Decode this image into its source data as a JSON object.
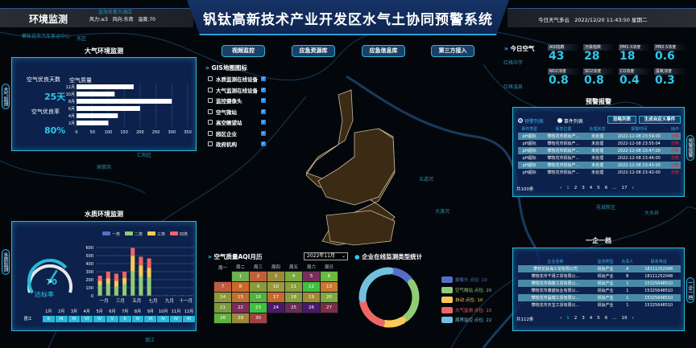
{
  "header": {
    "section": "环境监测",
    "weather_info": "风力:≤3   风向:东南   温度:70",
    "title": "钒钛高新技术产业开发区水气土协同预警系统",
    "datetime": "今日天气多云   2022/12/20 11:43:50 星期二"
  },
  "nav": [
    "视频监控",
    "应急资源库",
    "应急信息库",
    "第三方接入"
  ],
  "gis": {
    "title": "GIS地图图标",
    "items": [
      "水质监测在线设备",
      "大气监测在线设备",
      "监控摄像头",
      "空气微站",
      "高空瞭望站",
      "园区企业",
      "政府机构"
    ]
  },
  "map_labels": [
    "攀枝花市汽车客运中心",
    "东区",
    "金海名都大酒店",
    "红格中学",
    "红格温泉",
    "仁和区",
    "大渡河",
    "炳草岗",
    "五道河",
    "花城新区",
    "银江",
    "大水井"
  ],
  "air": {
    "title": "大气环境监测",
    "tab": "大气监测",
    "good_days_label": "空气优良天数",
    "good_days": "25天",
    "good_rate_label": "空气优良率",
    "good_rate": "80%",
    "chart_title": "空气质量"
  },
  "chart_data": [
    {
      "type": "bar",
      "orientation": "horizontal",
      "title": "空气质量",
      "categories": [
        "12月",
        "10月",
        "8月",
        "6月",
        "4月",
        "2月"
      ],
      "values": [
        180,
        120,
        300,
        200,
        130,
        100
      ],
      "xlim": [
        0,
        350
      ],
      "xticks": [
        0,
        50,
        100,
        150,
        200,
        250,
        300,
        350
      ],
      "grid": true,
      "color": "#ffffff"
    },
    {
      "type": "bar",
      "stacked": true,
      "categories": [
        "一月",
        "二月",
        "三月",
        "四月",
        "五月",
        "六月",
        "七月",
        "八月",
        "九月",
        "十月",
        "十一月",
        "十二月"
      ],
      "xtick_labels": [
        "一月",
        "三月",
        "五月",
        "七月",
        "九月",
        "十一月"
      ],
      "ylim": [
        0,
        600
      ],
      "yticks": [
        0,
        100,
        200,
        300,
        400,
        500,
        600
      ],
      "legend": "top",
      "series": [
        {
          "name": "一类",
          "color": "#5470c6",
          "values": [
            5,
            5,
            5,
            5,
            5,
            5,
            5,
            3,
            4,
            5,
            5,
            5
          ]
        },
        {
          "name": "二类",
          "color": "#91cc75",
          "values": [
            130,
            145,
            110,
            145,
            300,
            240,
            230,
            0,
            0,
            0,
            0,
            0
          ]
        },
        {
          "name": "三类",
          "color": "#fac858",
          "values": [
            50,
            65,
            70,
            70,
            190,
            130,
            110,
            0,
            0,
            0,
            0,
            0
          ]
        },
        {
          "name": "四类",
          "color": "#ee6666",
          "values": [
            65,
            85,
            90,
            80,
            100,
            110,
            120,
            0,
            0,
            0,
            0,
            0
          ]
        }
      ]
    },
    {
      "type": "pie",
      "donut": true,
      "title": "企业在线监测类型统计",
      "series": [
        {
          "name": "摄像头",
          "label": "摄像头 点位: 10",
          "value": 10,
          "color": "#5470c6"
        },
        {
          "name": "空气微站",
          "label": "空气微站 点位: 20",
          "value": 20,
          "color": "#91cc75"
        },
        {
          "name": "自动",
          "label": "自动 点位: 10",
          "value": 10,
          "color": "#fac858"
        },
        {
          "name": "大气监测",
          "label": "大气监测 点位: 15",
          "value": 15,
          "color": "#ee6666"
        },
        {
          "name": "周界监控",
          "label": "周界监控 点位: 22",
          "value": 22,
          "color": "#73c0de"
        }
      ]
    }
  ],
  "water": {
    "title": "水质环境监测",
    "tab": "水质监测",
    "gauge_value": "70",
    "gauge_pct": 70,
    "gauge_label": "达标率",
    "river": "晋江",
    "months": [
      "1月",
      "2月",
      "3月",
      "4月",
      "5月",
      "6月",
      "7月",
      "8月",
      "9月",
      "10月",
      "11月",
      "12月"
    ],
    "grades": [
      "II",
      "III",
      "III",
      "VI",
      "IV",
      "V",
      "II",
      "IV",
      "VI",
      "IV",
      "IV",
      "VI"
    ]
  },
  "calendar": {
    "title": "空气质量AQI月历",
    "month_select": "2022年11月",
    "weekdays": [
      "周一",
      "周二",
      "周三",
      "周四",
      "周五",
      "周六",
      "周日"
    ],
    "start_offset": 1,
    "colors": [
      "#6ab04c",
      "#c0603a",
      "#9a8a3a",
      "#7aa840",
      "#7a2e5a",
      "#6ab840",
      "#c05a40",
      "#c86a30",
      "#8a9a3a",
      "#9a9a40",
      "#8aa040",
      "#40c040",
      "#c87a30",
      "#8a9a3a",
      "#c07030",
      "#50b040",
      "#c86a30",
      "#8aa040",
      "#a08a3a",
      "#80a840",
      "#7a9a40",
      "#7a2e5a",
      "#40c040",
      "#4a1a6a",
      "#6a2a5a",
      "#4a1a6a",
      "#7a2e4a",
      "#60b040",
      "#9a8a3a",
      "#a04040"
    ]
  },
  "today_air": {
    "title": "今日空气",
    "metrics": [
      {
        "label": "AQI指数",
        "value": "43"
      },
      {
        "label": "污染指数",
        "value": "28"
      },
      {
        "label": "PM1.5浓度",
        "value": "18"
      },
      {
        "label": "PM2.5浓度",
        "value": "0.6"
      },
      {
        "label": "NO2浓度",
        "value": "0.8"
      },
      {
        "label": "SO2浓度",
        "value": "0.8"
      },
      {
        "label": "CO浓度",
        "value": "0.4"
      },
      {
        "label": "臭氧浓度",
        "value": "0.3"
      }
    ]
  },
  "alarm": {
    "title": "预警报警",
    "tab": "预警报警",
    "radio1": "预警列表",
    "radio2": "事件列表",
    "btn_ignore": "忽略列表",
    "btn_create": "生成自定义事件",
    "columns": [
      "事件类型",
      "事发位置",
      "处理状态",
      "报警时间",
      "操作"
    ],
    "rows": [
      [
        "pH超标",
        "攀枝花市钒钛产...",
        "未处理",
        "2022-12-08 23:59:00",
        "忽略"
      ],
      [
        "pH超标",
        "攀枝花市钒钛产...",
        "未处理",
        "2022-12-08 23:55:04",
        "忽略"
      ],
      [
        "pH超标",
        "攀枝花市钒钛产...",
        "未处理",
        "2022-12-08 23:47:00",
        "忽略"
      ],
      [
        "pH超标",
        "攀枝花市钒钛产...",
        "未处理",
        "2022-12-08 23:46:00",
        "忽略"
      ],
      [
        "pH超标",
        "攀枝花市钒钛产...",
        "未处理",
        "2022-12-08 23:43:00",
        "忽略"
      ],
      [
        "pH超标",
        "攀枝花市钒钛产...",
        "未处理",
        "2022-12-08 23:42:00",
        "忽略"
      ]
    ],
    "total": "共100条",
    "pages": [
      "‹",
      "1",
      "2",
      "3",
      "4",
      "5",
      "6",
      "...",
      "17",
      "›"
    ]
  },
  "enterprise": {
    "title": "一企一档",
    "tab": "一企一档",
    "columns": [
      "企业名称",
      "监测类型",
      "负责人",
      "联系电话"
    ],
    "rows": [
      [
        "攀枝花钛海工贸有限公司",
        "钒钛产业",
        "A",
        "18111252048"
      ],
      [
        "攀枝花市千禧工贸有限公...",
        "钒钛产业",
        "B",
        "18111252048"
      ],
      [
        "攀枝花市瑞泰工贸有限公...",
        "钒钛产业",
        "1",
        "15325648510"
      ],
      [
        "攀枝花市康盛钛业有限公...",
        "钒钛产业",
        "1",
        "15325648510"
      ],
      [
        "攀枝花市晶瑞工贸有限公...",
        "钒钛产业",
        "1",
        "15325648510"
      ],
      [
        "攀枝花市天宝工贸有限公...",
        "钒钛产业",
        "1",
        "15325648510"
      ]
    ],
    "total": "共112条",
    "pages": [
      "‹",
      "1",
      "2",
      "3",
      "4",
      "5",
      "6",
      "...",
      "19",
      "›"
    ]
  },
  "colors": {
    "accent": "#2fc8e8",
    "panel": "#0e2658",
    "border": "#2fb6d8",
    "alarm_action": "#e0282e",
    "district": "#3b2a14"
  }
}
